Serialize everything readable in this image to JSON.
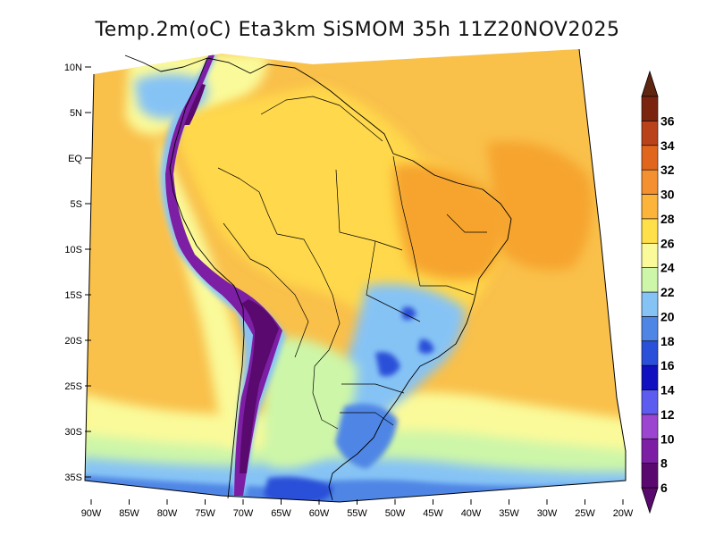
{
  "title": "Temp.2m(oC) Eta3km SiSMOM 35h 11Z20NOV2025",
  "lat_labels": [
    "10N",
    "5N",
    "EQ",
    "5S",
    "10S",
    "15S",
    "20S",
    "25S",
    "30S",
    "35S"
  ],
  "lon_labels": [
    "90W",
    "85W",
    "80W",
    "75W",
    "70W",
    "65W",
    "60W",
    "55W",
    "50W",
    "45W",
    "40W",
    "35W",
    "30W",
    "25W",
    "20W"
  ],
  "colorbar": {
    "labels": [
      "6",
      "8",
      "10",
      "12",
      "14",
      "16",
      "18",
      "20",
      "22",
      "24",
      "26",
      "28",
      "30",
      "32",
      "34",
      "36"
    ],
    "colors": [
      "#5a0a6e",
      "#7d1fa5",
      "#9b45d0",
      "#5c5cf0",
      "#1010c0",
      "#2a4fd8",
      "#4f86e6",
      "#86c3f5",
      "#cdf6a8",
      "#fafa9a",
      "#ffdf4a",
      "#fcb43a",
      "#f49030",
      "#e0661e",
      "#b9421b",
      "#7a2410"
    ],
    "under_color": "#5a0a6e",
    "over_color": "#5e2510"
  },
  "field_colors": {
    "warm_ocean": "#f9c04a",
    "land_tropical": "#ffd84b",
    "hot_northeast": "#f6a42f",
    "mild": "#fafa9a",
    "cool": "#cdf6a8",
    "cooler": "#86c3f5",
    "cold": "#4f86e6",
    "colder": "#2a4fd8",
    "andes_cold": "#7d1fa5",
    "andes_coldest": "#5a0a6e"
  }
}
